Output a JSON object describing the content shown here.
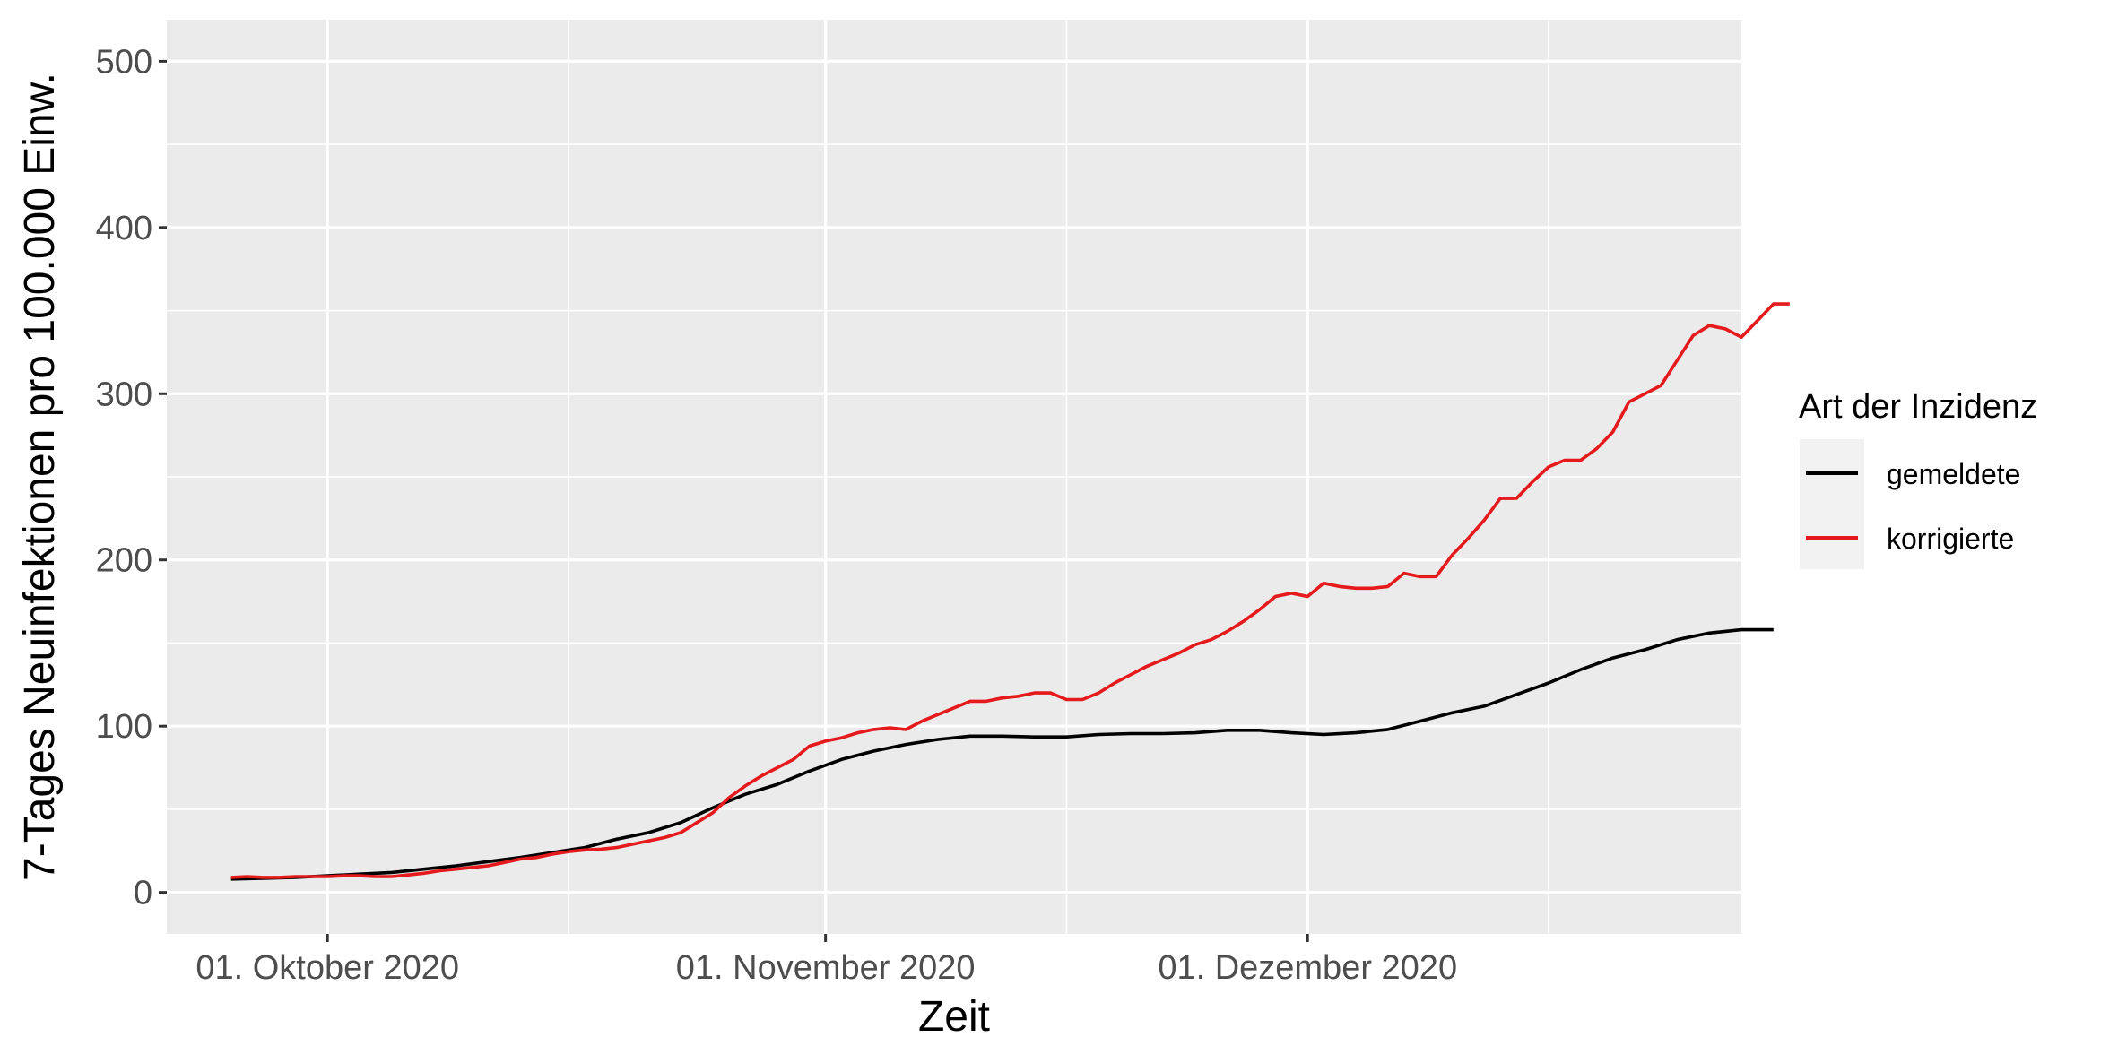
{
  "chart_data": {
    "type": "line",
    "xlabel": "Zeit",
    "ylabel": "7-Tages Neuinfektionen pro 100.000 Einw.",
    "xlim": [
      "2020-09-21",
      "2020-12-28"
    ],
    "ylim": [
      -25,
      525
    ],
    "x_ticks": [
      {
        "date": "2020-10-01",
        "label": "01. Oktober 2020"
      },
      {
        "date": "2020-11-01",
        "label": "01. November 2020"
      },
      {
        "date": "2020-12-01",
        "label": "01. Dezember 2020"
      }
    ],
    "x_minor_ticks": [
      "2020-10-16",
      "2020-11-16",
      "2020-12-16"
    ],
    "y_ticks": [
      0,
      100,
      200,
      300,
      400,
      500
    ],
    "y_minor_ticks": [
      50,
      150,
      250,
      350,
      450
    ],
    "grid": true,
    "legend": {
      "title": "Art der Inzidenz",
      "position": "right"
    },
    "series": [
      {
        "name": "gemeldete",
        "color": "#000000",
        "points": [
          [
            "2020-09-25",
            8
          ],
          [
            "2020-09-27",
            8.5
          ],
          [
            "2020-09-29",
            9
          ],
          [
            "2020-10-01",
            10
          ],
          [
            "2020-10-03",
            11
          ],
          [
            "2020-10-05",
            12
          ],
          [
            "2020-10-07",
            14
          ],
          [
            "2020-10-09",
            16
          ],
          [
            "2020-10-11",
            18.5
          ],
          [
            "2020-10-13",
            21
          ],
          [
            "2020-10-15",
            24
          ],
          [
            "2020-10-17",
            27
          ],
          [
            "2020-10-19",
            32
          ],
          [
            "2020-10-21",
            36
          ],
          [
            "2020-10-23",
            42
          ],
          [
            "2020-10-25",
            51
          ],
          [
            "2020-10-27",
            59
          ],
          [
            "2020-10-29",
            65
          ],
          [
            "2020-10-31",
            73
          ],
          [
            "2020-11-02",
            80
          ],
          [
            "2020-11-04",
            85
          ],
          [
            "2020-11-06",
            89
          ],
          [
            "2020-11-08",
            92
          ],
          [
            "2020-11-10",
            94
          ],
          [
            "2020-11-12",
            94
          ],
          [
            "2020-11-14",
            93.5
          ],
          [
            "2020-11-16",
            93.5
          ],
          [
            "2020-11-18",
            95
          ],
          [
            "2020-11-20",
            95.5
          ],
          [
            "2020-11-22",
            95.5
          ],
          [
            "2020-11-24",
            96
          ],
          [
            "2020-11-26",
            97.5
          ],
          [
            "2020-11-28",
            97.5
          ],
          [
            "2020-11-30",
            96
          ],
          [
            "2020-12-02",
            95
          ],
          [
            "2020-12-04",
            96
          ],
          [
            "2020-12-06",
            98
          ],
          [
            "2020-12-08",
            103
          ],
          [
            "2020-12-10",
            108
          ],
          [
            "2020-12-12",
            112
          ],
          [
            "2020-12-14",
            119
          ],
          [
            "2020-12-16",
            126
          ],
          [
            "2020-12-18",
            134
          ],
          [
            "2020-12-20",
            141
          ],
          [
            "2020-12-22",
            146
          ],
          [
            "2020-12-24",
            152
          ],
          [
            "2020-12-26",
            156
          ],
          [
            "2020-12-28",
            158
          ],
          [
            "2020-12-30",
            158
          ]
        ]
      },
      {
        "name": "korrigierte",
        "color": "#E41A1C",
        "points": [
          [
            "2020-09-25",
            9
          ],
          [
            "2020-09-26",
            9.5
          ],
          [
            "2020-09-27",
            9
          ],
          [
            "2020-09-28",
            9
          ],
          [
            "2020-09-29",
            9.5
          ],
          [
            "2020-09-30",
            9.5
          ],
          [
            "2020-10-01",
            9.5
          ],
          [
            "2020-10-02",
            10
          ],
          [
            "2020-10-03",
            10
          ],
          [
            "2020-10-04",
            9.5
          ],
          [
            "2020-10-05",
            9.5
          ],
          [
            "2020-10-06",
            10.5
          ],
          [
            "2020-10-07",
            11.5
          ],
          [
            "2020-10-08",
            13
          ],
          [
            "2020-10-09",
            14
          ],
          [
            "2020-10-10",
            15
          ],
          [
            "2020-10-11",
            16
          ],
          [
            "2020-10-12",
            18
          ],
          [
            "2020-10-13",
            20
          ],
          [
            "2020-10-14",
            21
          ],
          [
            "2020-10-15",
            23
          ],
          [
            "2020-10-16",
            24.5
          ],
          [
            "2020-10-17",
            25.5
          ],
          [
            "2020-10-18",
            26
          ],
          [
            "2020-10-19",
            27
          ],
          [
            "2020-10-20",
            29
          ],
          [
            "2020-10-21",
            31
          ],
          [
            "2020-10-22",
            33
          ],
          [
            "2020-10-23",
            36
          ],
          [
            "2020-10-24",
            42
          ],
          [
            "2020-10-25",
            48
          ],
          [
            "2020-10-26",
            57
          ],
          [
            "2020-10-27",
            64
          ],
          [
            "2020-10-28",
            70
          ],
          [
            "2020-10-29",
            75
          ],
          [
            "2020-10-30",
            80
          ],
          [
            "2020-10-31",
            88
          ],
          [
            "2020-11-01",
            91
          ],
          [
            "2020-11-02",
            93
          ],
          [
            "2020-11-03",
            96
          ],
          [
            "2020-11-04",
            98
          ],
          [
            "2020-11-05",
            99
          ],
          [
            "2020-11-06",
            98
          ],
          [
            "2020-11-07",
            103
          ],
          [
            "2020-11-08",
            107
          ],
          [
            "2020-11-09",
            111
          ],
          [
            "2020-11-10",
            115
          ],
          [
            "2020-11-11",
            115
          ],
          [
            "2020-11-12",
            117
          ],
          [
            "2020-11-13",
            118
          ],
          [
            "2020-11-14",
            120
          ],
          [
            "2020-11-15",
            120
          ],
          [
            "2020-11-16",
            116
          ],
          [
            "2020-11-17",
            116
          ],
          [
            "2020-11-18",
            120
          ],
          [
            "2020-11-19",
            126
          ],
          [
            "2020-11-20",
            131
          ],
          [
            "2020-11-21",
            136
          ],
          [
            "2020-11-22",
            140
          ],
          [
            "2020-11-23",
            144
          ],
          [
            "2020-11-24",
            149
          ],
          [
            "2020-11-25",
            152
          ],
          [
            "2020-11-26",
            157
          ],
          [
            "2020-11-27",
            163
          ],
          [
            "2020-11-28",
            170
          ],
          [
            "2020-11-29",
            178
          ],
          [
            "2020-11-30",
            180
          ],
          [
            "2020-12-01",
            178
          ],
          [
            "2020-12-02",
            186
          ],
          [
            "2020-12-03",
            184
          ],
          [
            "2020-12-04",
            183
          ],
          [
            "2020-12-05",
            183
          ],
          [
            "2020-12-06",
            184
          ],
          [
            "2020-12-07",
            192
          ],
          [
            "2020-12-08",
            190
          ],
          [
            "2020-12-09",
            190
          ],
          [
            "2020-12-10",
            203
          ],
          [
            "2020-12-11",
            213
          ],
          [
            "2020-12-12",
            224
          ],
          [
            "2020-12-13",
            237
          ],
          [
            "2020-12-14",
            237
          ],
          [
            "2020-12-15",
            247
          ],
          [
            "2020-12-16",
            256
          ],
          [
            "2020-12-17",
            260
          ],
          [
            "2020-12-18",
            260
          ],
          [
            "2020-12-19",
            267
          ],
          [
            "2020-12-20",
            277
          ],
          [
            "2020-12-21",
            295
          ],
          [
            "2020-12-22",
            300
          ],
          [
            "2020-12-23",
            305
          ],
          [
            "2020-12-24",
            320
          ],
          [
            "2020-12-25",
            335
          ],
          [
            "2020-12-26",
            341
          ],
          [
            "2020-12-27",
            339
          ],
          [
            "2020-12-28",
            334
          ],
          [
            "2020-12-29",
            344
          ],
          [
            "2020-12-30",
            354
          ],
          [
            "2020-12-31",
            354
          ]
        ]
      }
    ]
  }
}
